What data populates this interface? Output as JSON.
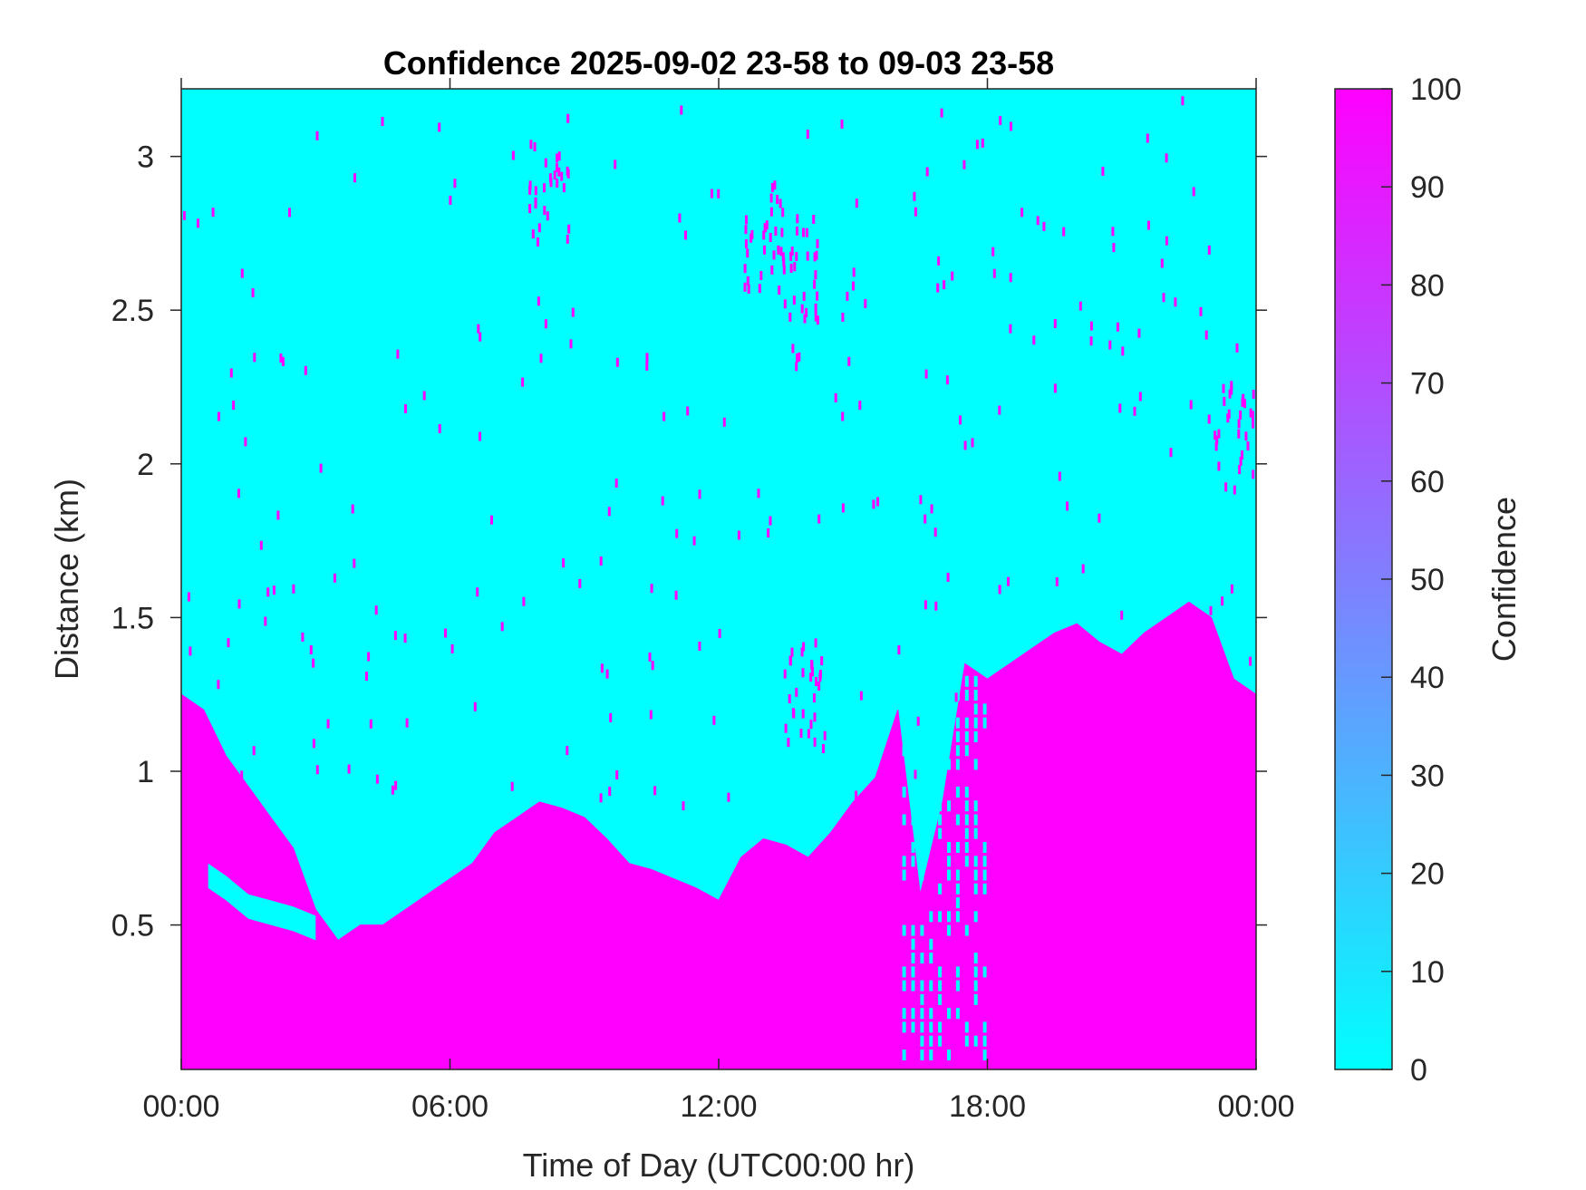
{
  "chart_data": {
    "type": "heatmap",
    "title": "Confidence 2025-09-02 23-58 to 09-03 23-58",
    "xlabel": "Time of Day (UTC00:00 hr)",
    "ylabel": "Distance (km)",
    "xlim": [
      0,
      24
    ],
    "ylim": [
      0.03,
      3.22
    ],
    "x_ticks": [
      0,
      6,
      12,
      18,
      24
    ],
    "x_tick_labels": [
      "00:00",
      "06:00",
      "12:00",
      "18:00",
      "00:00"
    ],
    "y_ticks": [
      0.5,
      1,
      1.5,
      2,
      2.5,
      3
    ],
    "y_tick_labels": [
      "0.5",
      "1",
      "1.5",
      "2",
      "2.5",
      "3"
    ],
    "colorbar": {
      "label": "Confidence",
      "range": [
        0,
        100
      ],
      "ticks": [
        0,
        10,
        20,
        30,
        40,
        50,
        60,
        70,
        80,
        90,
        100
      ],
      "tick_labels": [
        "0",
        "10",
        "20",
        "30",
        "40",
        "50",
        "60",
        "70",
        "80",
        "90",
        "100"
      ],
      "color_low": "#00ffff",
      "color_high": "#ff00ff"
    },
    "background_value": 0,
    "high_confidence_value": 100,
    "high_confidence_boundary": {
      "hours": [
        0,
        0.5,
        1,
        1.5,
        2,
        2.5,
        3,
        3.5,
        4,
        4.5,
        5,
        5.5,
        6,
        6.5,
        7,
        7.5,
        8,
        8.5,
        9,
        9.5,
        10,
        10.5,
        11,
        11.5,
        12,
        12.5,
        13,
        13.5,
        14,
        14.5,
        15,
        15.5,
        16,
        16.5,
        17,
        17.5,
        18,
        18.5,
        19,
        19.5,
        20,
        20.5,
        21,
        21.5,
        22,
        22.5,
        23,
        23.5,
        24
      ],
      "top_km": [
        1.25,
        1.2,
        1.05,
        0.95,
        0.85,
        0.75,
        0.55,
        0.45,
        0.5,
        0.5,
        0.55,
        0.6,
        0.65,
        0.7,
        0.8,
        0.85,
        0.9,
        0.88,
        0.85,
        0.78,
        0.7,
        0.68,
        0.65,
        0.62,
        0.58,
        0.72,
        0.78,
        0.76,
        0.72,
        0.8,
        0.9,
        0.98,
        1.2,
        0.6,
        0.9,
        1.35,
        1.3,
        1.35,
        1.4,
        1.45,
        1.48,
        1.42,
        1.38,
        1.45,
        1.5,
        1.55,
        1.5,
        1.3,
        1.25
      ]
    },
    "low_layer": {
      "hours": [
        0.6,
        1,
        1.5,
        2,
        2.5,
        3
      ],
      "top_km": [
        0.62,
        0.58,
        0.52,
        0.5,
        0.48,
        0.45
      ]
    },
    "mixed_columns_hours": [
      16.1,
      16.3,
      16.5,
      16.7,
      16.9,
      17.1,
      17.3,
      17.5,
      17.7,
      17.9
    ],
    "sparse_clusters": [
      {
        "hour": 8.2,
        "km": 2.9
      },
      {
        "hour": 13.0,
        "km": 2.75
      },
      {
        "hour": 13.8,
        "km": 2.65
      },
      {
        "hour": 13.9,
        "km": 1.25
      },
      {
        "hour": 23.5,
        "km": 2.1
      }
    ]
  }
}
